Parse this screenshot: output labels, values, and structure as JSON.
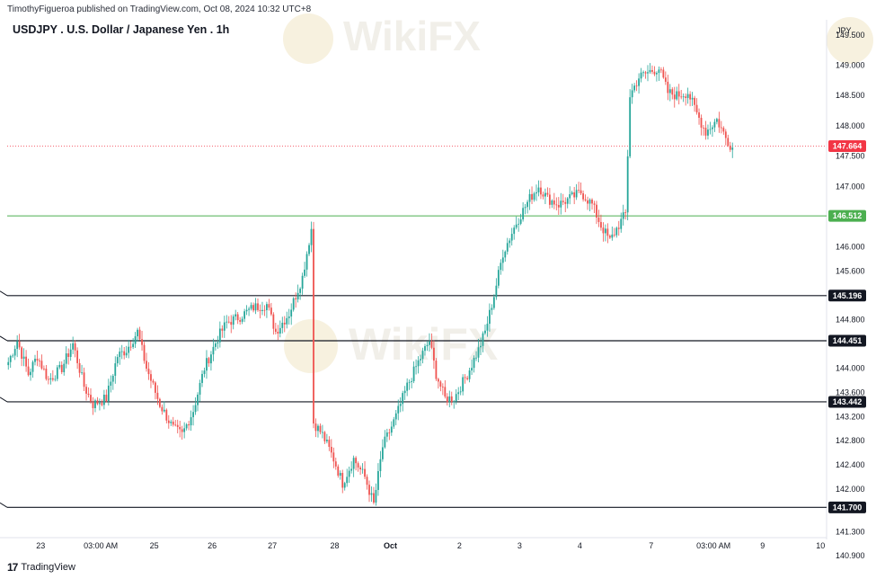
{
  "header": {
    "publish_line": "TimothyFigueroa published on TradingView.com, Oct 08, 2024 10:32 UTC+8",
    "title": "USDJPY . U.S. Dollar / Japanese Yen . 1h"
  },
  "currency_label": "JPY",
  "watermark_text": "WikiFX",
  "footer": {
    "logo_text": "TradingView",
    "logo_mark": "17"
  },
  "colors": {
    "up": "#26a69a",
    "down": "#ef5350",
    "current_price_tag": "#f23645",
    "support_green": "#4caf50",
    "horizontal_black": "#131722"
  },
  "chart_data": {
    "type": "candlestick",
    "symbol": "USDJPY",
    "interval": "1h",
    "ylim": [
      141.2,
      149.75
    ],
    "y_ticks": [
      "149.500",
      "149.000",
      "148.500",
      "148.000",
      "147.500",
      "147.000",
      "146.000",
      "145.600",
      "144.800",
      "144.000",
      "143.600",
      "143.200",
      "142.800",
      "142.400",
      "142.000",
      "141.300",
      "140.900"
    ],
    "x_ticks": [
      "23",
      "03:00 AM",
      "25",
      "26",
      "27",
      "28",
      "Oct",
      "2",
      "3",
      "4",
      "7",
      "03:00 AM",
      "9",
      "10"
    ],
    "horizontal_lines": [
      {
        "price": 146.512,
        "label": "146.512",
        "color": "green"
      },
      {
        "price": 145.196,
        "label": "145.196",
        "color": "black"
      },
      {
        "price": 144.451,
        "label": "144.451",
        "color": "black"
      },
      {
        "price": 143.442,
        "label": "143.442",
        "color": "black"
      },
      {
        "price": 141.7,
        "label": "141.700",
        "color": "black"
      }
    ],
    "current_price": {
      "value": 147.664,
      "label": "147.664"
    },
    "price_path": [
      [
        0,
        144.1
      ],
      [
        4,
        144.45
      ],
      [
        9,
        143.9
      ],
      [
        13,
        144.2
      ],
      [
        18,
        143.8
      ],
      [
        24,
        144.0
      ],
      [
        29,
        144.4
      ],
      [
        34,
        143.7
      ],
      [
        38,
        143.4
      ],
      [
        44,
        143.5
      ],
      [
        49,
        144.2
      ],
      [
        53,
        144.3
      ],
      [
        58,
        144.6
      ],
      [
        62,
        144.0
      ],
      [
        68,
        143.4
      ],
      [
        74,
        143.0
      ],
      [
        78,
        142.9
      ],
      [
        83,
        143.3
      ],
      [
        88,
        144.0
      ],
      [
        94,
        144.5
      ],
      [
        98,
        144.75
      ],
      [
        104,
        144.85
      ],
      [
        110,
        145.0
      ],
      [
        116,
        145.05
      ],
      [
        120,
        144.6
      ],
      [
        126,
        144.9
      ],
      [
        132,
        145.5
      ],
      [
        136,
        146.3
      ],
      [
        137,
        143.1
      ],
      [
        141,
        142.9
      ],
      [
        146,
        142.5
      ],
      [
        150,
        142.1
      ],
      [
        155,
        142.5
      ],
      [
        160,
        142.2
      ],
      [
        164,
        141.75
      ],
      [
        168,
        142.7
      ],
      [
        174,
        143.2
      ],
      [
        179,
        143.7
      ],
      [
        184,
        144.1
      ],
      [
        189,
        144.45
      ],
      [
        192,
        143.9
      ],
      [
        196,
        143.5
      ],
      [
        200,
        143.5
      ],
      [
        206,
        143.9
      ],
      [
        211,
        144.3
      ],
      [
        214,
        144.6
      ],
      [
        218,
        145.2
      ],
      [
        222,
        145.9
      ],
      [
        228,
        146.4
      ],
      [
        234,
        146.8
      ],
      [
        238,
        147.0
      ],
      [
        242,
        146.8
      ],
      [
        247,
        146.7
      ],
      [
        252,
        146.8
      ],
      [
        257,
        146.9
      ],
      [
        262,
        146.7
      ],
      [
        266,
        146.35
      ],
      [
        270,
        146.1
      ],
      [
        273,
        146.3
      ],
      [
        277,
        146.55
      ],
      [
        279,
        148.5
      ],
      [
        283,
        148.8
      ],
      [
        288,
        148.9
      ],
      [
        292,
        148.95
      ],
      [
        296,
        148.55
      ],
      [
        300,
        148.5
      ],
      [
        305,
        148.55
      ],
      [
        309,
        148.2
      ],
      [
        313,
        147.9
      ],
      [
        318,
        148.1
      ],
      [
        322,
        147.8
      ],
      [
        325,
        147.64
      ]
    ]
  }
}
